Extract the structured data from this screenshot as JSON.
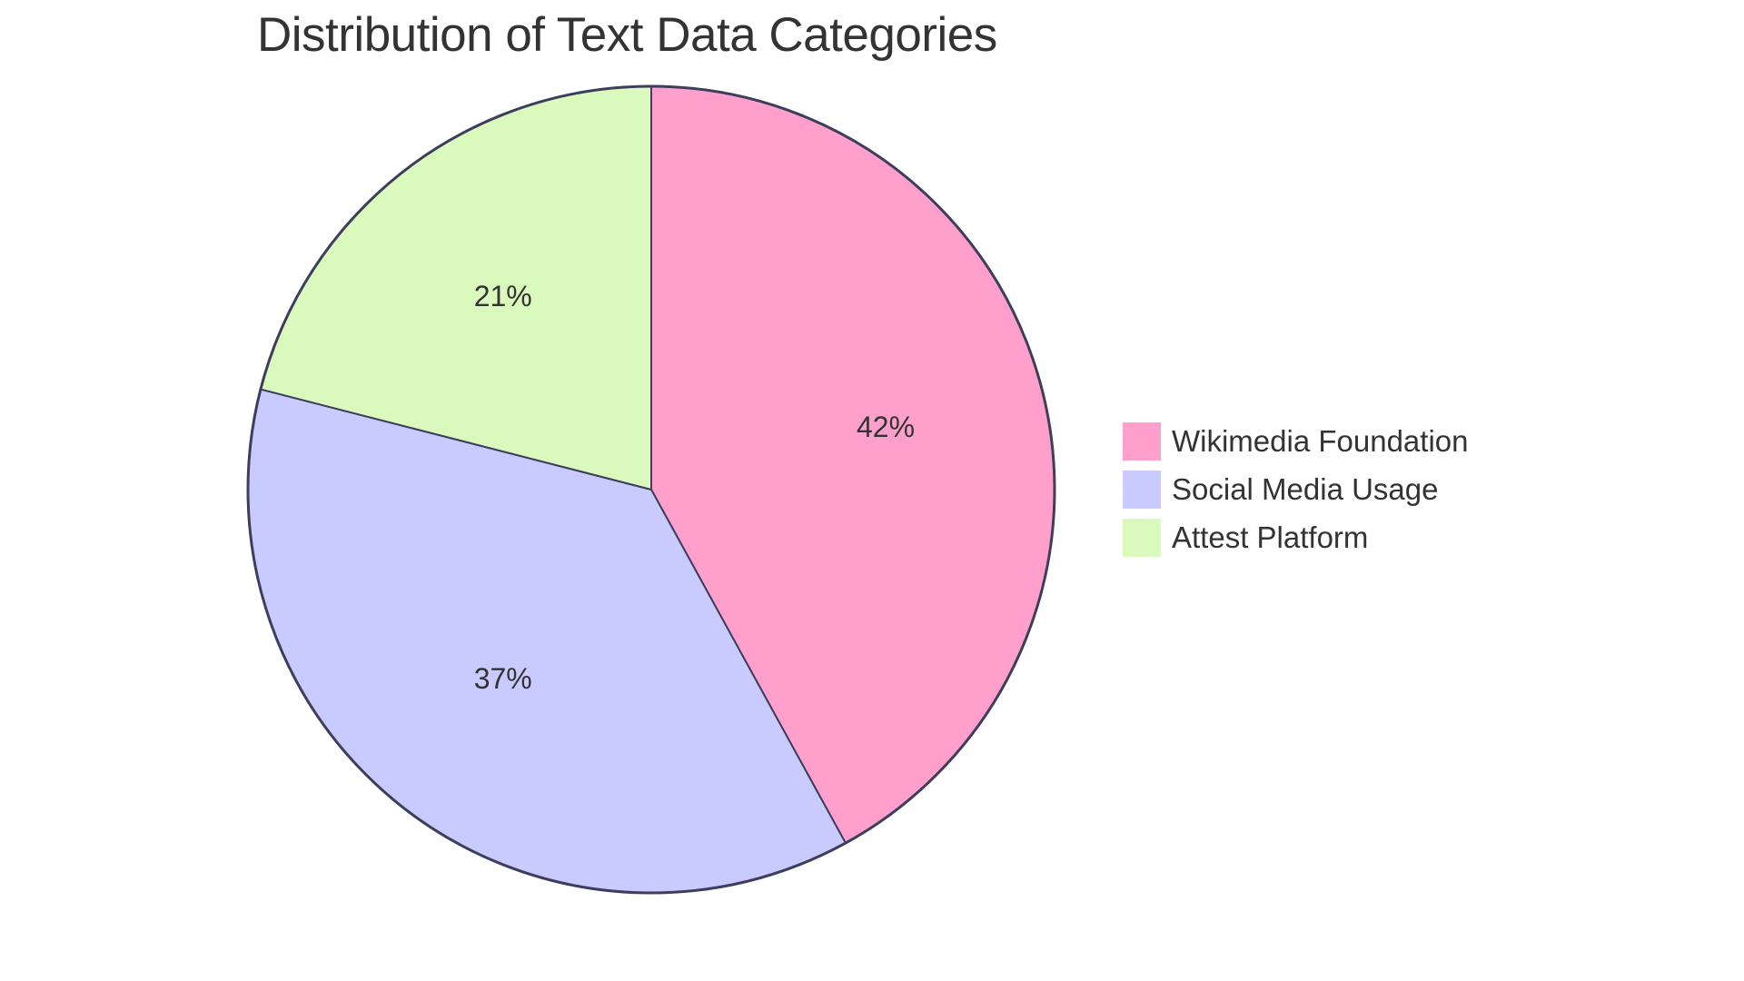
{
  "chart_data": {
    "type": "pie",
    "title": "Distribution of Text Data Categories",
    "categories": [
      "Wikimedia Foundation",
      "Social Media Usage",
      "Attest Platform"
    ],
    "values": [
      42,
      37,
      21
    ],
    "labels": [
      "42%",
      "37%",
      "21%"
    ],
    "colors": [
      "#FFA0CC",
      "#C9CAFF",
      "#DAF9BD"
    ],
    "stroke_color": "#3D3D5C",
    "legend_position": "right",
    "start_angle": "12 o'clock, clockwise"
  },
  "title": "Distribution of Text Data Categories",
  "legend": [
    {
      "label": "Wikimedia Foundation",
      "color": "#FFA0CC"
    },
    {
      "label": "Social Media Usage",
      "color": "#C9CAFF"
    },
    {
      "label": "Attest Platform",
      "color": "#DAF9BD"
    }
  ]
}
